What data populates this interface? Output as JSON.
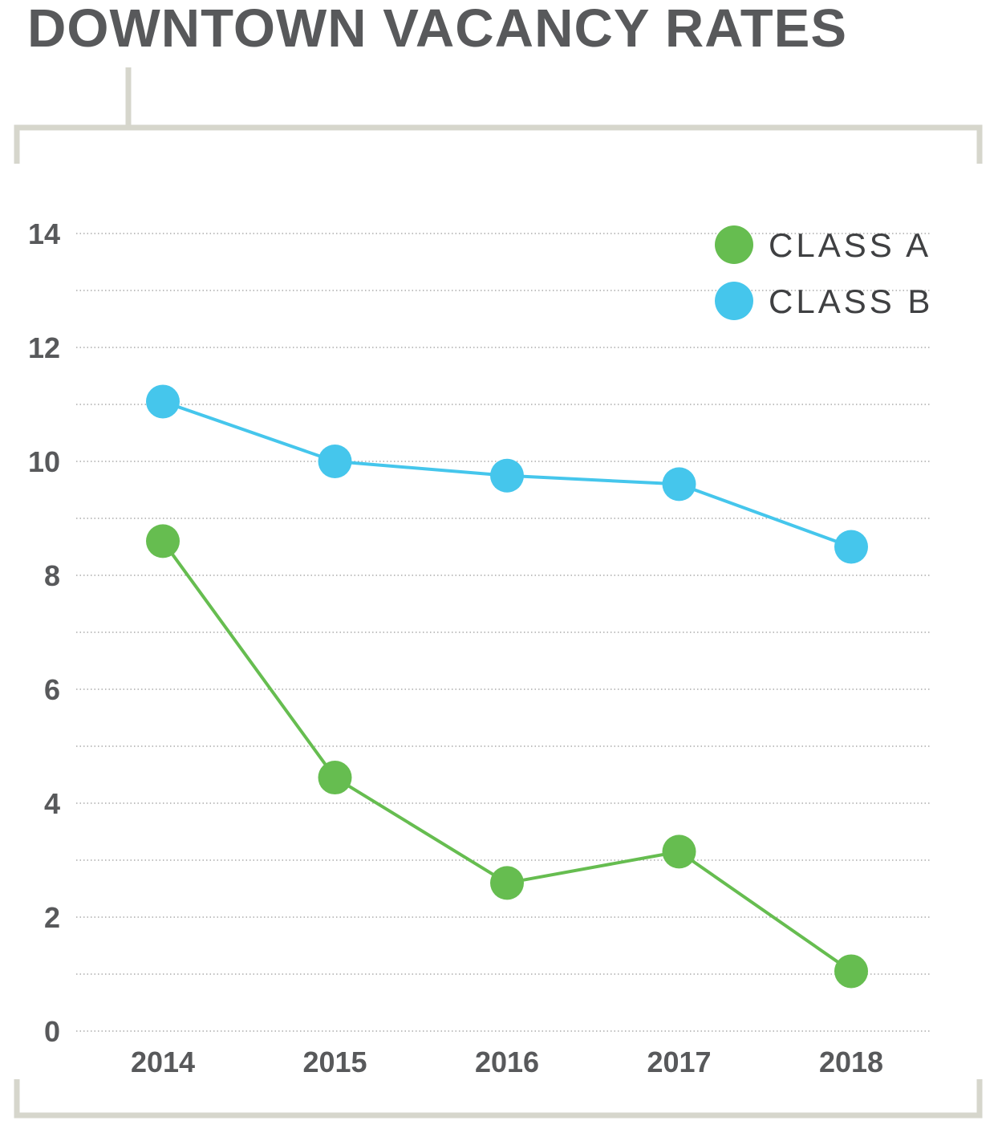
{
  "title": "DOWNTOWN VACANCY RATES",
  "colors": {
    "frame": "#d6d6cc",
    "grid": "#9a9a9a",
    "text": "#58595b",
    "class_a": "#66bd50",
    "class_b": "#45c6ec"
  },
  "chart_data": {
    "type": "line",
    "title": "DOWNTOWN VACANCY RATES",
    "xlabel": "",
    "ylabel": "",
    "x": [
      "2014",
      "2015",
      "2016",
      "2017",
      "2018"
    ],
    "ylim": [
      0,
      14
    ],
    "yticks": [
      0,
      2,
      4,
      6,
      8,
      10,
      12,
      14
    ],
    "ytick_labels": [
      "0",
      "2",
      "4",
      "6",
      "8",
      "10",
      "12",
      "14"
    ],
    "grid": true,
    "legend_position": "top-right",
    "series": [
      {
        "name": "CLASS A",
        "color": "#66bd50",
        "values": [
          8.6,
          4.45,
          2.6,
          3.15,
          1.05
        ]
      },
      {
        "name": "CLASS B",
        "color": "#45c6ec",
        "values": [
          11.05,
          10.0,
          9.75,
          9.6,
          8.5
        ]
      }
    ]
  }
}
